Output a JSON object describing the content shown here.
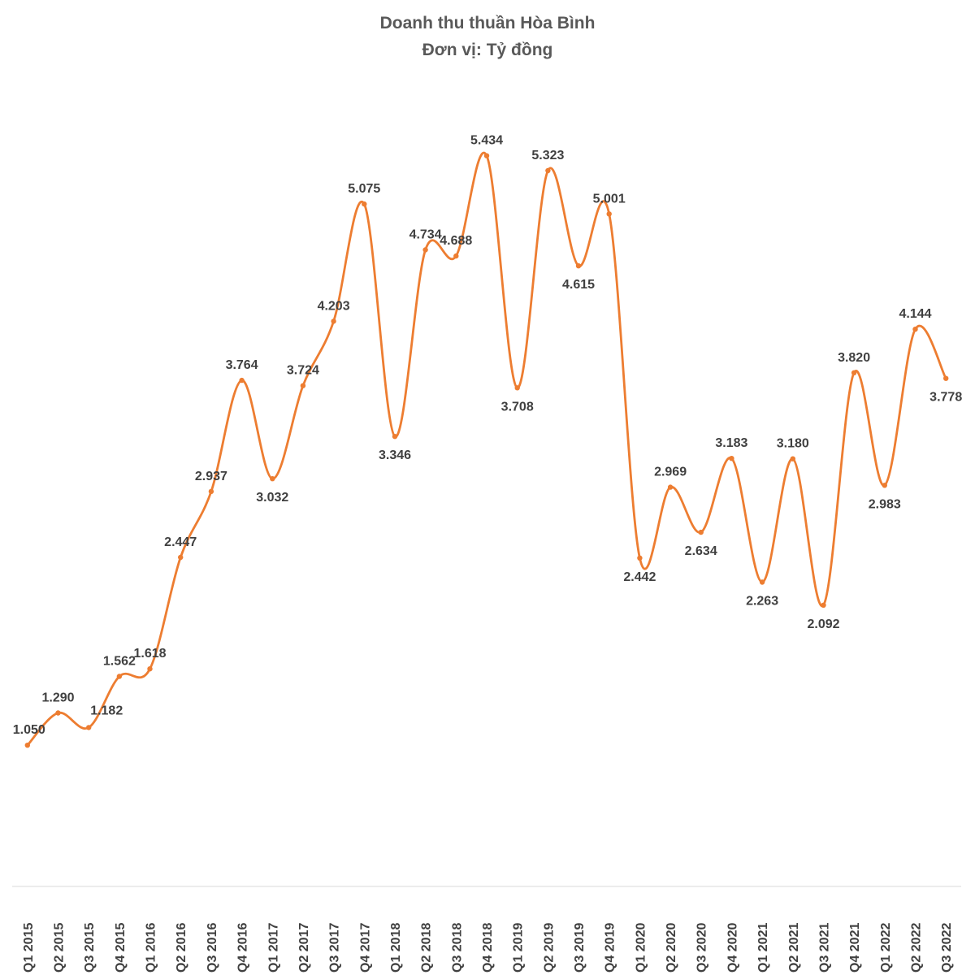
{
  "chart_data": {
    "type": "line",
    "title": "Doanh thu thuần Hòa Bình",
    "subtitle": "Đơn vị: Tỷ đồng",
    "xlabel": "",
    "ylabel": "",
    "smooth": true,
    "grid": false,
    "legend": "none",
    "ylim": [
      0,
      6
    ],
    "color": "#ED7D31",
    "categories": [
      "Q1 2015",
      "Q2 2015",
      "Q3 2015",
      "Q4 2015",
      "Q1 2016",
      "Q2 2016",
      "Q3 2016",
      "Q4 2016",
      "Q1 2017",
      "Q2 2017",
      "Q3 2017",
      "Q4 2017",
      "Q1 2018",
      "Q2 2018",
      "Q3 2018",
      "Q4 2018",
      "Q1 2019",
      "Q2 2019",
      "Q3 2019",
      "Q4 2019",
      "Q1 2020",
      "Q2 2020",
      "Q3 2020",
      "Q4 2020",
      "Q1 2021",
      "Q2 2021",
      "Q3 2021",
      "Q4 2021",
      "Q1 2022",
      "Q2 2022",
      "Q3 2022"
    ],
    "values": [
      1.05,
      1.29,
      1.182,
      1.562,
      1.618,
      2.447,
      2.937,
      3.764,
      3.032,
      3.724,
      4.203,
      5.075,
      3.346,
      4.734,
      4.688,
      5.434,
      3.708,
      5.323,
      4.615,
      5.001,
      2.442,
      2.969,
      2.634,
      3.183,
      2.263,
      3.18,
      2.092,
      3.82,
      2.983,
      4.144,
      3.778
    ],
    "labels": [
      "1.050",
      "1.290",
      "1.182",
      "1.562",
      "1.618",
      "2.447",
      "2.937",
      "3.764",
      "3.032",
      "3.724",
      "4.203",
      "5.075",
      "3.346",
      "4.734",
      "4.688",
      "5.434",
      "3.708",
      "5.323",
      "4.615",
      "5.001",
      "2.442",
      "2.969",
      "2.634",
      "3.183",
      "2.263",
      "3.180",
      "2.092",
      "3.820",
      "2.983",
      "4.144",
      "3.778"
    ],
    "label_positions": [
      "left",
      "above",
      "right",
      "above",
      "above",
      "above",
      "above",
      "above",
      "below",
      "above",
      "above",
      "above",
      "below",
      "above",
      "above",
      "above",
      "below",
      "above",
      "below",
      "above",
      "below",
      "above",
      "below",
      "above",
      "below",
      "above",
      "below",
      "above",
      "below",
      "above",
      "below"
    ]
  }
}
